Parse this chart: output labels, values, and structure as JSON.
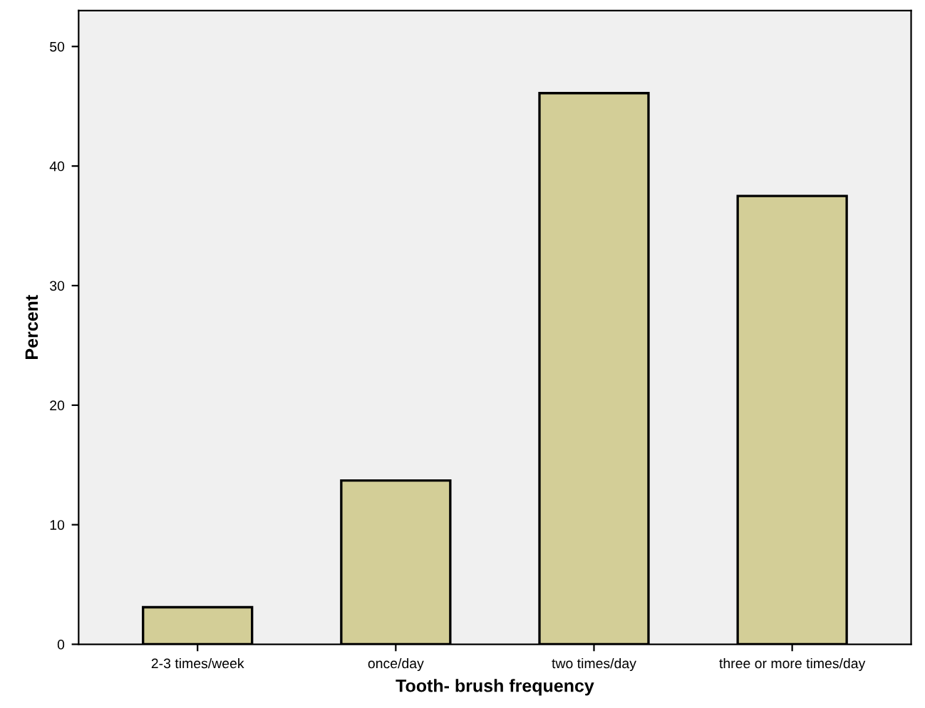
{
  "chart_data": {
    "type": "bar",
    "xlabel": "Tooth- brush frequency",
    "ylabel": "Percent",
    "categories": [
      "2-3 times/week",
      "once/day",
      "two times/day",
      "three or more times/day"
    ],
    "values": [
      3.1,
      13.7,
      46.1,
      37.5
    ],
    "color": "#d3ce97",
    "ylim": [
      0,
      53
    ],
    "yticks": [
      0,
      10,
      20,
      30,
      40,
      50
    ],
    "grid": false
  }
}
